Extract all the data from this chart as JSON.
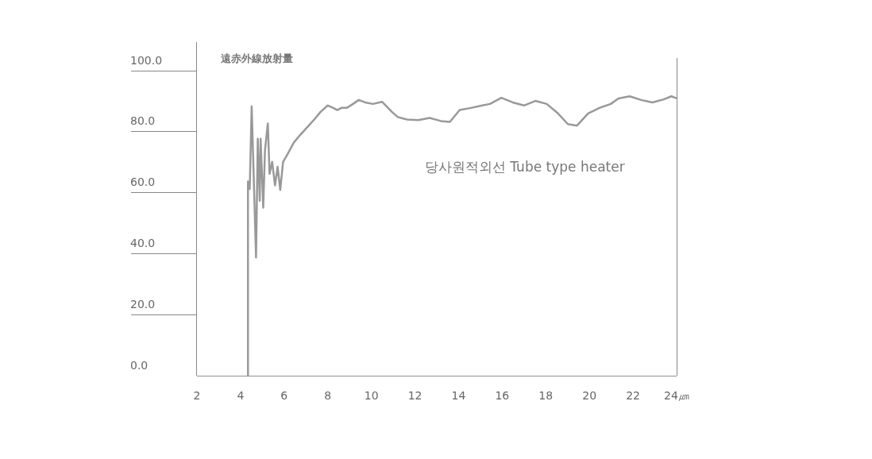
{
  "chart_data": {
    "type": "line",
    "title": "遠赤外線放射量",
    "x": [
      4.34,
      4.34,
      4.42,
      4.51,
      4.63,
      4.71,
      4.79,
      4.88,
      4.92,
      5.04,
      5.12,
      5.25,
      5.33,
      5.45,
      5.58,
      5.7,
      5.82,
      5.95,
      6.15,
      6.44,
      6.73,
      7.06,
      7.38,
      7.67,
      8.0,
      8.25,
      8.44,
      8.62,
      8.87,
      9.16,
      9.42,
      9.71,
      10.07,
      10.49,
      10.94,
      11.21,
      11.63,
      12.15,
      12.67,
      13.19,
      13.6,
      14.05,
      14.57,
      15.09,
      15.44,
      15.96,
      16.48,
      17.0,
      17.52,
      18.04,
      18.56,
      19.01,
      19.43,
      19.94,
      20.46,
      20.98,
      21.33,
      21.85,
      22.37,
      22.89,
      23.41,
      23.76,
      24.0
    ],
    "series": [
      {
        "name": "당사원적외선 Tube type heater",
        "color": "#999999",
        "values": [
          0,
          63.7,
          61.2,
          88.3,
          58.6,
          38.8,
          77.7,
          57.4,
          77.7,
          55.1,
          73.9,
          82.7,
          66.2,
          70.1,
          62.4,
          68.5,
          60.9,
          70.1,
          72.6,
          76.4,
          78.9,
          81.5,
          84.0,
          86.5,
          88.6,
          87.8,
          87.1,
          87.8,
          87.8,
          89.1,
          90.4,
          89.6,
          89.1,
          89.8,
          86.5,
          84.8,
          84.0,
          83.8,
          84.5,
          83.5,
          83.2,
          87.1,
          87.8,
          88.6,
          89.1,
          91.1,
          89.6,
          88.6,
          90.1,
          89.1,
          86.0,
          82.5,
          82.0,
          86.0,
          87.8,
          89.1,
          90.9,
          91.6,
          90.4,
          89.6,
          90.6,
          91.6,
          90.9
        ]
      }
    ],
    "xlim": [
      2,
      24
    ],
    "xticks": [
      2,
      4,
      6,
      8,
      10,
      12,
      14,
      16,
      18,
      20,
      22,
      {
        "value": 24,
        "label": "24㎛"
      }
    ],
    "ylim": [
      0,
      100
    ],
    "yticks": [
      {
        "value": 0,
        "label": "0.0"
      },
      {
        "value": 20,
        "label": "20.0"
      },
      {
        "value": 40,
        "label": "40.0"
      },
      {
        "value": 60,
        "label": "60.0"
      },
      {
        "value": 80,
        "label": "80.0"
      },
      {
        "value": 100,
        "label": "100.0"
      }
    ],
    "legend": false,
    "marker": "none",
    "line_style": "solid"
  }
}
